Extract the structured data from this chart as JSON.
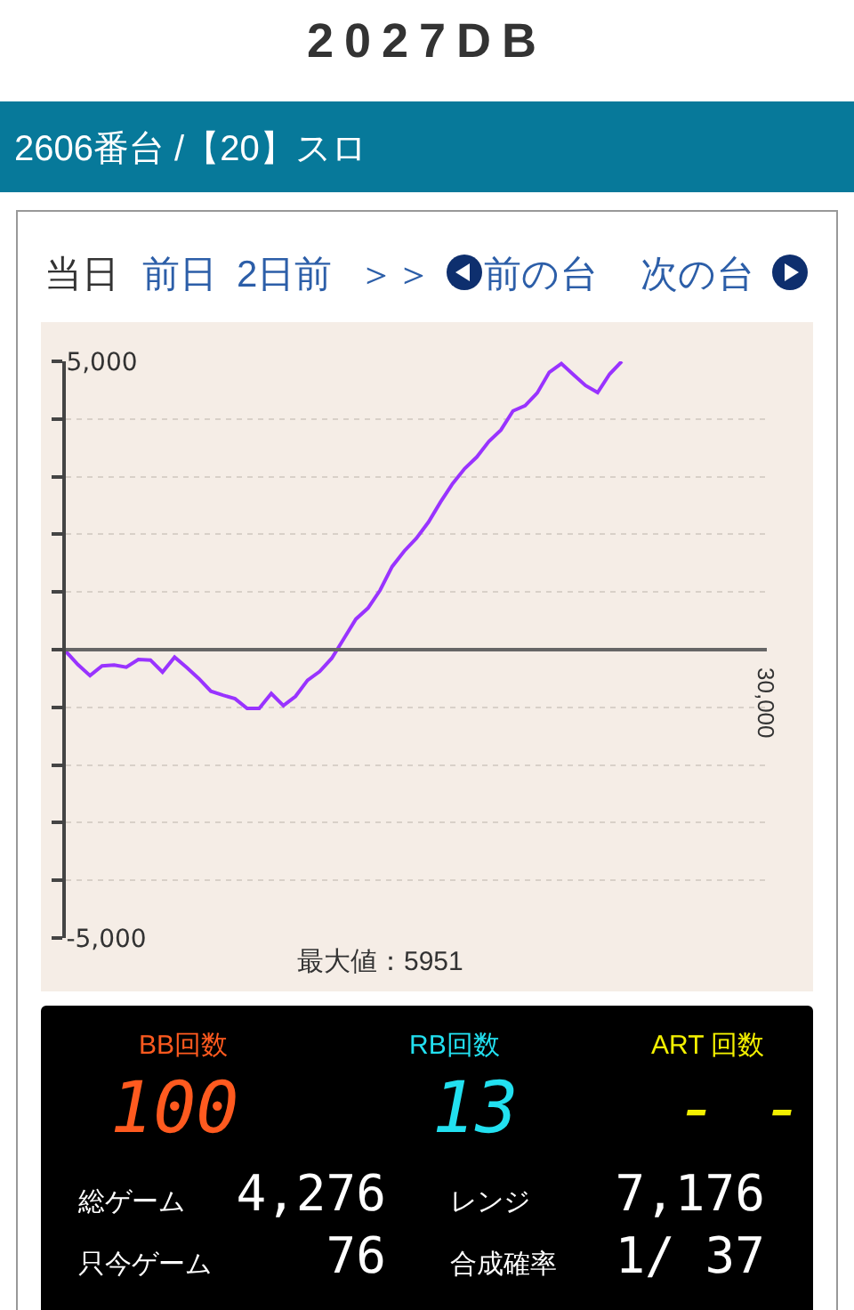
{
  "chart_data": {
    "type": "line",
    "title": "2027DB",
    "subtitle": "2606番台 /【20】スロ",
    "categories": [
      null,
      null,
      null,
      null,
      null,
      null,
      null,
      null,
      null,
      null,
      null,
      null,
      null,
      null,
      null,
      null,
      null,
      null,
      null,
      null,
      null,
      null,
      null,
      null,
      null,
      null,
      null,
      null,
      null,
      null,
      null,
      null,
      null,
      null,
      null,
      null,
      null,
      null,
      null,
      null,
      null,
      null,
      null,
      null,
      null,
      null,
      null,
      null,
      null,
      null,
      null,
      null,
      null,
      null,
      null,
      null,
      null,
      null,
      null
    ],
    "series": [
      {
        "color": "#9933ff",
        "values": [
          -30,
          -260,
          -450,
          -280,
          -265,
          -305,
          -170,
          -180,
          -390,
          -130,
          -310,
          -500,
          -720,
          -790,
          -850,
          -1020,
          -1020,
          -760,
          -970,
          -810,
          -530,
          -380,
          -150,
          190,
          530,
          720,
          1030,
          1440,
          1710,
          1930,
          2210,
          2560,
          2880,
          3140,
          3340,
          3610,
          3810,
          4140,
          4230,
          4450,
          4810,
          4960,
          4770,
          4580,
          4460,
          4780,
          5000,
          null,
          null,
          null,
          null,
          null,
          null,
          null,
          null,
          null,
          null,
          null,
          null
        ]
      }
    ],
    "ylim": [
      -5000,
      5000
    ],
    "yticks": [
      {
        "value": -5000,
        "label": "-5,000"
      },
      {
        "value": -4000,
        "label": null
      },
      {
        "value": -3000,
        "label": null
      },
      {
        "value": -2000,
        "label": null
      },
      {
        "value": -1000,
        "label": null
      },
      {
        "value": 0,
        "label": null
      },
      {
        "value": 1000,
        "label": null
      },
      {
        "value": 2000,
        "label": null
      },
      {
        "value": 3000,
        "label": null
      },
      {
        "value": 4000,
        "label": null
      },
      {
        "value": 5000,
        "label": "5,000"
      }
    ],
    "grid": "y",
    "marker": "none",
    "line_style": "solid",
    "annotations": [
      "当日",
      "前日",
      "2日前",
      "＞＞",
      "前の台",
      "次の台",
      "最大値：5951",
      "BB回数",
      "100",
      "RB回数",
      "13",
      "ART 回数",
      "- -",
      "総ゲーム",
      "4,276",
      "レンジ",
      "7,176",
      "只今ゲーム",
      "76",
      "合成確率",
      "1/ 37",
      "30,000"
    ]
  }
}
